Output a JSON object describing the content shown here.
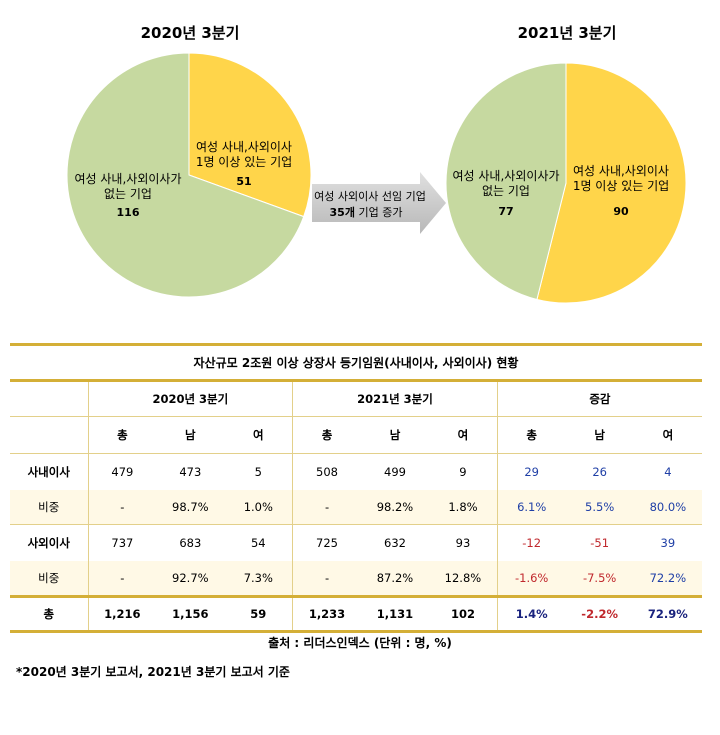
{
  "colors": {
    "green": "#c6d9a0",
    "yellow": "#ffd54a",
    "gold": "#d4af37",
    "arrow": "#c8c8c8"
  },
  "chart_data": [
    {
      "type": "pie",
      "title": "2020년 3분기",
      "slices": [
        {
          "label_line1": "여성 사내,사외이사",
          "label_line2": "1명 이상 있는 기업",
          "value": 51,
          "color": "#ffd54a"
        },
        {
          "label_line1": "여성 사내,사외이사가",
          "label_line2": "없는 기업",
          "value": 116,
          "color": "#c6d9a0"
        }
      ]
    },
    {
      "type": "pie",
      "title": "2021년 3분기",
      "slices": [
        {
          "label_line1": "여성 사내,사외이사",
          "label_line2": "1명 이상 있는 기업",
          "value": 90,
          "color": "#ffd54a"
        },
        {
          "label_line1": "여성 사내,사외이사가",
          "label_line2": "없는 기업",
          "value": 77,
          "color": "#c6d9a0"
        }
      ]
    }
  ],
  "arrow": {
    "line1": "여성 사외이사 선임 기업",
    "count": "35개",
    "line2_rest": " 기업 증가"
  },
  "table": {
    "title": "자산규모 2조원 이상 상장사 등기임원(사내이사, 사외이사) 현황",
    "groups": [
      "2020년 3분기",
      "2021년 3분기",
      "증감"
    ],
    "sub": [
      "총",
      "남",
      "여",
      "총",
      "남",
      "여",
      "총",
      "남",
      "여"
    ],
    "rows": [
      {
        "label": "사내이사",
        "cells": [
          "479",
          "473",
          "5",
          "508",
          "499",
          "9",
          "29",
          "26",
          "4"
        ]
      },
      {
        "label": "비중",
        "cells": [
          "-",
          "98.7%",
          "1.0%",
          "-",
          "98.2%",
          "1.8%",
          "6.1%",
          "5.5%",
          "80.0%"
        ]
      },
      {
        "label": "사외이사",
        "cells": [
          "737",
          "683",
          "54",
          "725",
          "632",
          "93",
          "-12",
          "-51",
          "39"
        ]
      },
      {
        "label": "비중",
        "cells": [
          "-",
          "92.7%",
          "7.3%",
          "-",
          "87.2%",
          "12.8%",
          "-1.6%",
          "-7.5%",
          "72.2%"
        ]
      },
      {
        "label": "총",
        "cells": [
          "1,216",
          "1,156",
          "59",
          "1,233",
          "1,131",
          "102",
          "1.4%",
          "-2.2%",
          "72.9%"
        ]
      }
    ]
  },
  "source": "출처 : 리더스인덱스 (단위 : 명, %)",
  "footnote": "*2020년 3분기 보고서, 2021년 3분기 보고서 기준"
}
